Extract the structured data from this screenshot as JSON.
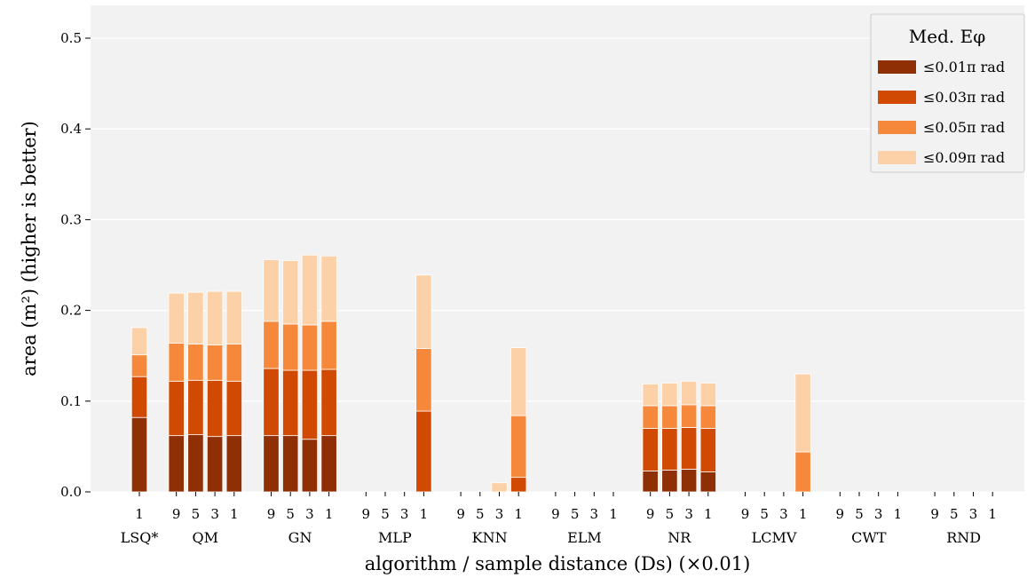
{
  "chart_data": {
    "type": "bar",
    "stacked": true,
    "title": "",
    "xlabel": "algorithm / sample distance (Ds) (×0.01)",
    "ylabel": "area (m²) (higher is better)",
    "ylim": [
      0,
      0.52
    ],
    "yticks": [
      "0.0",
      "0.1",
      "0.2",
      "0.3",
      "0.4",
      "0.5"
    ],
    "grid": true,
    "legend": {
      "title": "Med. Eφ",
      "placement": "top-right",
      "entries": [
        "≤0.01π rad",
        "≤0.03π rad",
        "≤0.05π rad",
        "≤0.09π rad"
      ]
    },
    "colors": [
      "#8e2f05",
      "#d14a03",
      "#f5883b",
      "#fdd1a8"
    ],
    "groups": [
      {
        "name": "LSQ*",
        "ticks": [
          "1"
        ],
        "bars": [
          [
            0.082,
            0.127,
            0.151,
            0.181
          ]
        ]
      },
      {
        "name": "QM",
        "ticks": [
          "9",
          "5",
          "3",
          "1"
        ],
        "bars": [
          [
            0.062,
            0.122,
            0.164,
            0.219
          ],
          [
            0.063,
            0.123,
            0.163,
            0.22
          ],
          [
            0.061,
            0.123,
            0.162,
            0.221
          ],
          [
            0.062,
            0.122,
            0.163,
            0.221
          ]
        ]
      },
      {
        "name": "GN",
        "ticks": [
          "9",
          "5",
          "3",
          "1"
        ],
        "bars": [
          [
            0.062,
            0.136,
            0.188,
            0.256
          ],
          [
            0.062,
            0.134,
            0.185,
            0.255
          ],
          [
            0.058,
            0.134,
            0.184,
            0.261
          ],
          [
            0.062,
            0.135,
            0.188,
            0.26
          ]
        ]
      },
      {
        "name": "MLP",
        "ticks": [
          "9",
          "5",
          "3",
          "1"
        ],
        "bars": [
          [
            0,
            0,
            0,
            0
          ],
          [
            0,
            0,
            0,
            0
          ],
          [
            0,
            0,
            0,
            0
          ],
          [
            0,
            0.089,
            0.158,
            0.239
          ]
        ]
      },
      {
        "name": "KNN",
        "ticks": [
          "9",
          "5",
          "3",
          "1"
        ],
        "bars": [
          [
            0,
            0,
            0,
            0
          ],
          [
            0,
            0,
            0,
            0
          ],
          [
            0,
            0,
            0,
            0.01
          ],
          [
            0,
            0.016,
            0.084,
            0.159
          ]
        ]
      },
      {
        "name": "ELM",
        "ticks": [
          "9",
          "5",
          "3",
          "1"
        ],
        "bars": [
          [
            0,
            0,
            0,
            0
          ],
          [
            0,
            0,
            0,
            0
          ],
          [
            0,
            0,
            0,
            0
          ],
          [
            0,
            0,
            0,
            0
          ]
        ]
      },
      {
        "name": "NR",
        "ticks": [
          "9",
          "5",
          "3",
          "1"
        ],
        "bars": [
          [
            0.023,
            0.07,
            0.095,
            0.119
          ],
          [
            0.024,
            0.07,
            0.095,
            0.12
          ],
          [
            0.025,
            0.071,
            0.096,
            0.122
          ],
          [
            0.022,
            0.07,
            0.095,
            0.12
          ]
        ]
      },
      {
        "name": "LCMV",
        "ticks": [
          "9",
          "5",
          "3",
          "1"
        ],
        "bars": [
          [
            0,
            0,
            0,
            0
          ],
          [
            0,
            0,
            0,
            0
          ],
          [
            0,
            0,
            0,
            0
          ],
          [
            0,
            0,
            0.044,
            0.13
          ]
        ]
      },
      {
        "name": "CWT",
        "ticks": [
          "9",
          "5",
          "3",
          "1"
        ],
        "bars": [
          [
            0,
            0,
            0,
            0
          ],
          [
            0,
            0,
            0,
            0
          ],
          [
            0,
            0,
            0,
            0
          ],
          [
            0,
            0,
            0,
            0
          ]
        ]
      },
      {
        "name": "RND",
        "ticks": [
          "9",
          "5",
          "3",
          "1"
        ],
        "bars": [
          [
            0,
            0,
            0,
            0
          ],
          [
            0,
            0,
            0,
            0
          ],
          [
            0,
            0,
            0,
            0
          ],
          [
            0,
            0,
            0,
            0
          ]
        ]
      }
    ]
  }
}
